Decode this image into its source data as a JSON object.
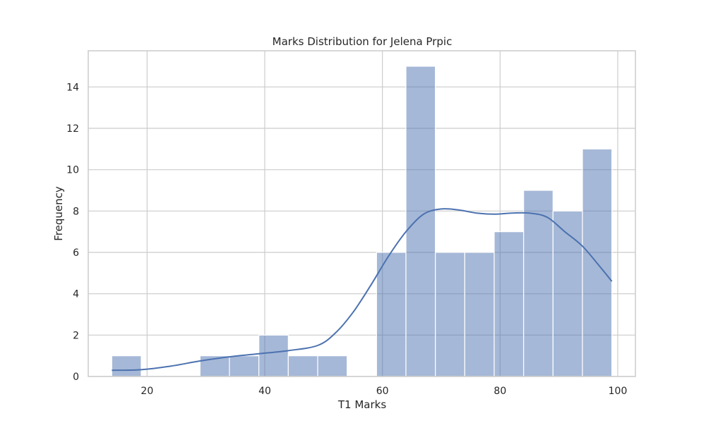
{
  "chart_data": {
    "type": "bar",
    "title": "Marks Distribution for Jelena Prpic",
    "xlabel": "T1 Marks",
    "ylabel": "Frequency",
    "xlim": [
      10,
      103
    ],
    "ylim": [
      0,
      15.75
    ],
    "xticks": [
      20,
      40,
      60,
      80,
      100
    ],
    "yticks": [
      0,
      2,
      4,
      6,
      8,
      10,
      12,
      14
    ],
    "grid": true,
    "bin_edges": [
      14,
      19,
      24,
      29,
      34,
      39,
      44,
      49,
      54,
      59,
      64,
      69,
      74,
      79,
      84,
      89,
      94,
      99
    ],
    "values": [
      1,
      0,
      0,
      1,
      1,
      2,
      1,
      1,
      0,
      6,
      15,
      6,
      6,
      7,
      9,
      8,
      11
    ],
    "kde": {
      "x": [
        14,
        19,
        24,
        29,
        34,
        39,
        44,
        49,
        52,
        55,
        58,
        61,
        64,
        67,
        70,
        73,
        76,
        79,
        82,
        85,
        88,
        91,
        94,
        97,
        99
      ],
      "y": [
        0.3,
        0.33,
        0.5,
        0.75,
        0.95,
        1.1,
        1.25,
        1.5,
        2.1,
        3.1,
        4.4,
        5.8,
        7.0,
        7.85,
        8.1,
        8.05,
        7.9,
        7.85,
        7.9,
        7.9,
        7.7,
        7.0,
        6.3,
        5.3,
        4.6
      ]
    },
    "colors": {
      "bar": "#4c72b0",
      "kde": "#4c72b0",
      "grid": "#cccccc"
    }
  }
}
